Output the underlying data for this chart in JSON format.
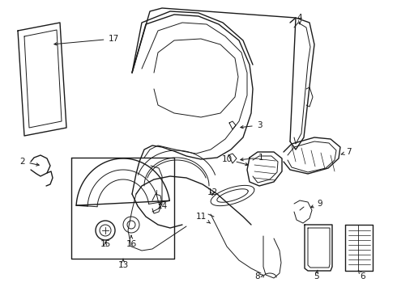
{
  "bg_color": "#ffffff",
  "line_color": "#1a1a1a",
  "figsize": [
    4.9,
    3.6
  ],
  "dpi": 100,
  "xlim": [
    0,
    490
  ],
  "ylim": [
    0,
    360
  ]
}
